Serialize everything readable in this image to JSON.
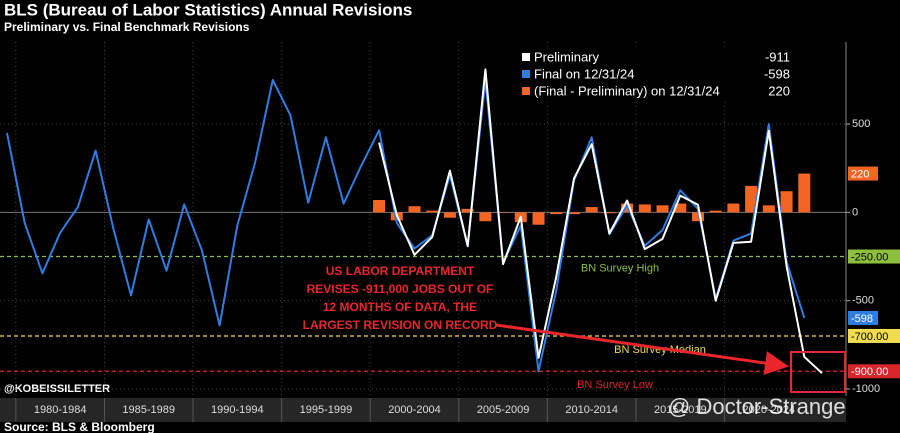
{
  "chart_data": {
    "type": "line",
    "title": "BLS (Bureau of Labor Statistics) Annual Revisions",
    "subtitle": "Preliminary vs. Final Benchmark Revisions",
    "x": [
      1979,
      1980,
      1981,
      1982,
      1983,
      1984,
      1985,
      1986,
      1987,
      1988,
      1989,
      1990,
      1991,
      1992,
      1993,
      1994,
      1995,
      1996,
      1997,
      1998,
      1999,
      2000,
      2001,
      2002,
      2003,
      2004,
      2005,
      2006,
      2007,
      2008,
      2009,
      2010,
      2011,
      2012,
      2013,
      2014,
      2015,
      2016,
      2017,
      2018,
      2019,
      2020,
      2021,
      2022,
      2023,
      2024,
      2025
    ],
    "xlim": [
      1979,
      2025
    ],
    "x_periods": [
      {
        "label": "1980-1984",
        "start": 1980,
        "end": 1984
      },
      {
        "label": "1985-1989",
        "start": 1985,
        "end": 1989
      },
      {
        "label": "1990-1994",
        "start": 1990,
        "end": 1994
      },
      {
        "label": "1995-1999",
        "start": 1995,
        "end": 1999
      },
      {
        "label": "2000-2004",
        "start": 2000,
        "end": 2004
      },
      {
        "label": "2005-2009",
        "start": 2005,
        "end": 2009
      },
      {
        "label": "2010-2014",
        "start": 2010,
        "end": 2014
      },
      {
        "label": "2015-2019",
        "start": 2015,
        "end": 2019
      },
      {
        "label": "2020-2024",
        "start": 2020,
        "end": 2024
      }
    ],
    "ylim": [
      -1040,
      965
    ],
    "yticks": [
      500,
      0,
      -500,
      -1000
    ],
    "grid": true,
    "series": [
      {
        "name": "Preliminary",
        "type": "line",
        "color": "#ffffff",
        "last_value": -911,
        "axis_tag": false,
        "values": [
          null,
          null,
          null,
          null,
          null,
          null,
          null,
          null,
          null,
          null,
          null,
          null,
          null,
          null,
          null,
          null,
          null,
          null,
          null,
          null,
          null,
          395,
          -15,
          -240,
          -140,
          236,
          -191,
          810,
          -293,
          -24,
          -824,
          -366,
          192,
          386,
          -119,
          67,
          -208,
          -150,
          95,
          43,
          -501,
          -173,
          -166,
          462,
          -306,
          -818,
          -911
        ]
      },
      {
        "name": "Final on 12/31/24",
        "type": "line",
        "color": "#2f7de1",
        "last_value": -598,
        "axis_tag": true,
        "values": [
          450,
          -60,
          -345,
          -115,
          30,
          350,
          -90,
          -470,
          -40,
          -330,
          45,
          -215,
          -640,
          -75,
          280,
          750,
          550,
          55,
          425,
          50,
          265,
          465,
          -60,
          -205,
          -130,
          210,
          -190,
          750,
          -285,
          -75,
          -900,
          -445,
          180,
          425,
          -125,
          40,
          -190,
          -100,
          125,
          20,
          -490,
          -160,
          -120,
          500,
          -280,
          -598,
          null
        ]
      },
      {
        "name": "(Final - Preliminary) on 12/31/24",
        "type": "bar",
        "color": "#f26522",
        "last_value": 220,
        "axis_tag": true,
        "values": [
          null,
          null,
          null,
          null,
          null,
          null,
          null,
          null,
          null,
          null,
          null,
          null,
          null,
          null,
          null,
          null,
          null,
          null,
          null,
          null,
          null,
          70,
          -45,
          35,
          10,
          -30,
          20,
          -50,
          0,
          -55,
          -70,
          -10,
          -10,
          30,
          -5,
          50,
          45,
          40,
          50,
          -50,
          10,
          50,
          150,
          40,
          120,
          220,
          null
        ]
      }
    ],
    "reference_lines": [
      {
        "name": "BN Survey High",
        "value": -250,
        "label": "-250.00",
        "color": "#8fbf3f",
        "text_color": "#000000"
      },
      {
        "name": "BN Survey Median",
        "value": -700,
        "label": "-700.00",
        "color": "#f0dc4e",
        "text_color": "#000000"
      },
      {
        "name": "BN Survey Low",
        "value": -900,
        "label": "-900.00",
        "color": "#d9262b",
        "text_color": "#ffffff"
      }
    ],
    "annotation": {
      "lines": [
        "US LABOR DEPARTMENT",
        "REVISES -911,000 JOBS OUT OF",
        "12 MONTHS OF DATA, THE",
        "LARGEST REVISION ON RECORD"
      ],
      "color": "#e8262b"
    },
    "handle": "@KOBEISSILETTER",
    "watermark": "@ Doctor-Strange",
    "source": "Source: BLS & Bloomberg"
  }
}
